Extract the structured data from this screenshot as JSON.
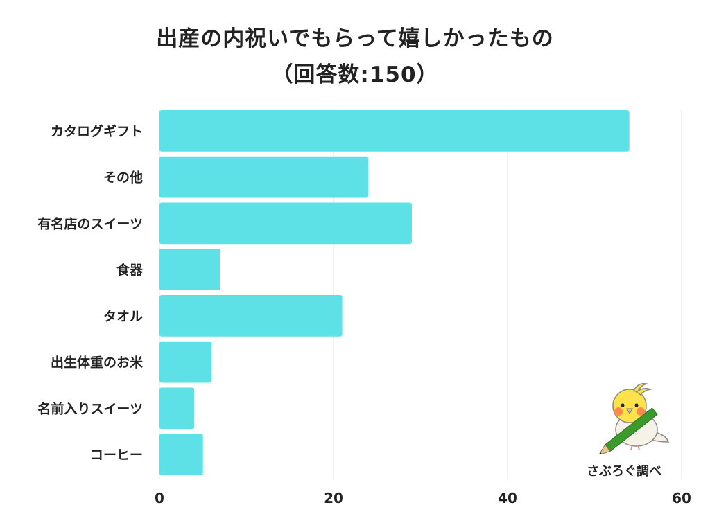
{
  "title": {
    "line1": "出産の内祝いでもらって嬉しかったもの",
    "line2": "（回答数:150）"
  },
  "credit": "さぶろぐ調べ",
  "colors": {
    "bar": "#5ee1e6",
    "grid": "#e3e3e3"
  },
  "chart_data": {
    "type": "bar",
    "orientation": "horizontal",
    "title": "出産の内祝いでもらって嬉しかったもの（回答数:150）",
    "categories": [
      "カタログギフト",
      "その他",
      "有名店のスイーツ",
      "食器",
      "タオル",
      "出生体重のお米",
      "名前入りスイーツ",
      "コーヒー"
    ],
    "values": [
      54,
      24,
      29,
      7,
      21,
      6,
      4,
      5
    ],
    "xlim": [
      0,
      60
    ],
    "xticks": [
      0,
      20,
      40,
      60
    ],
    "grid": true,
    "legend": "none"
  }
}
